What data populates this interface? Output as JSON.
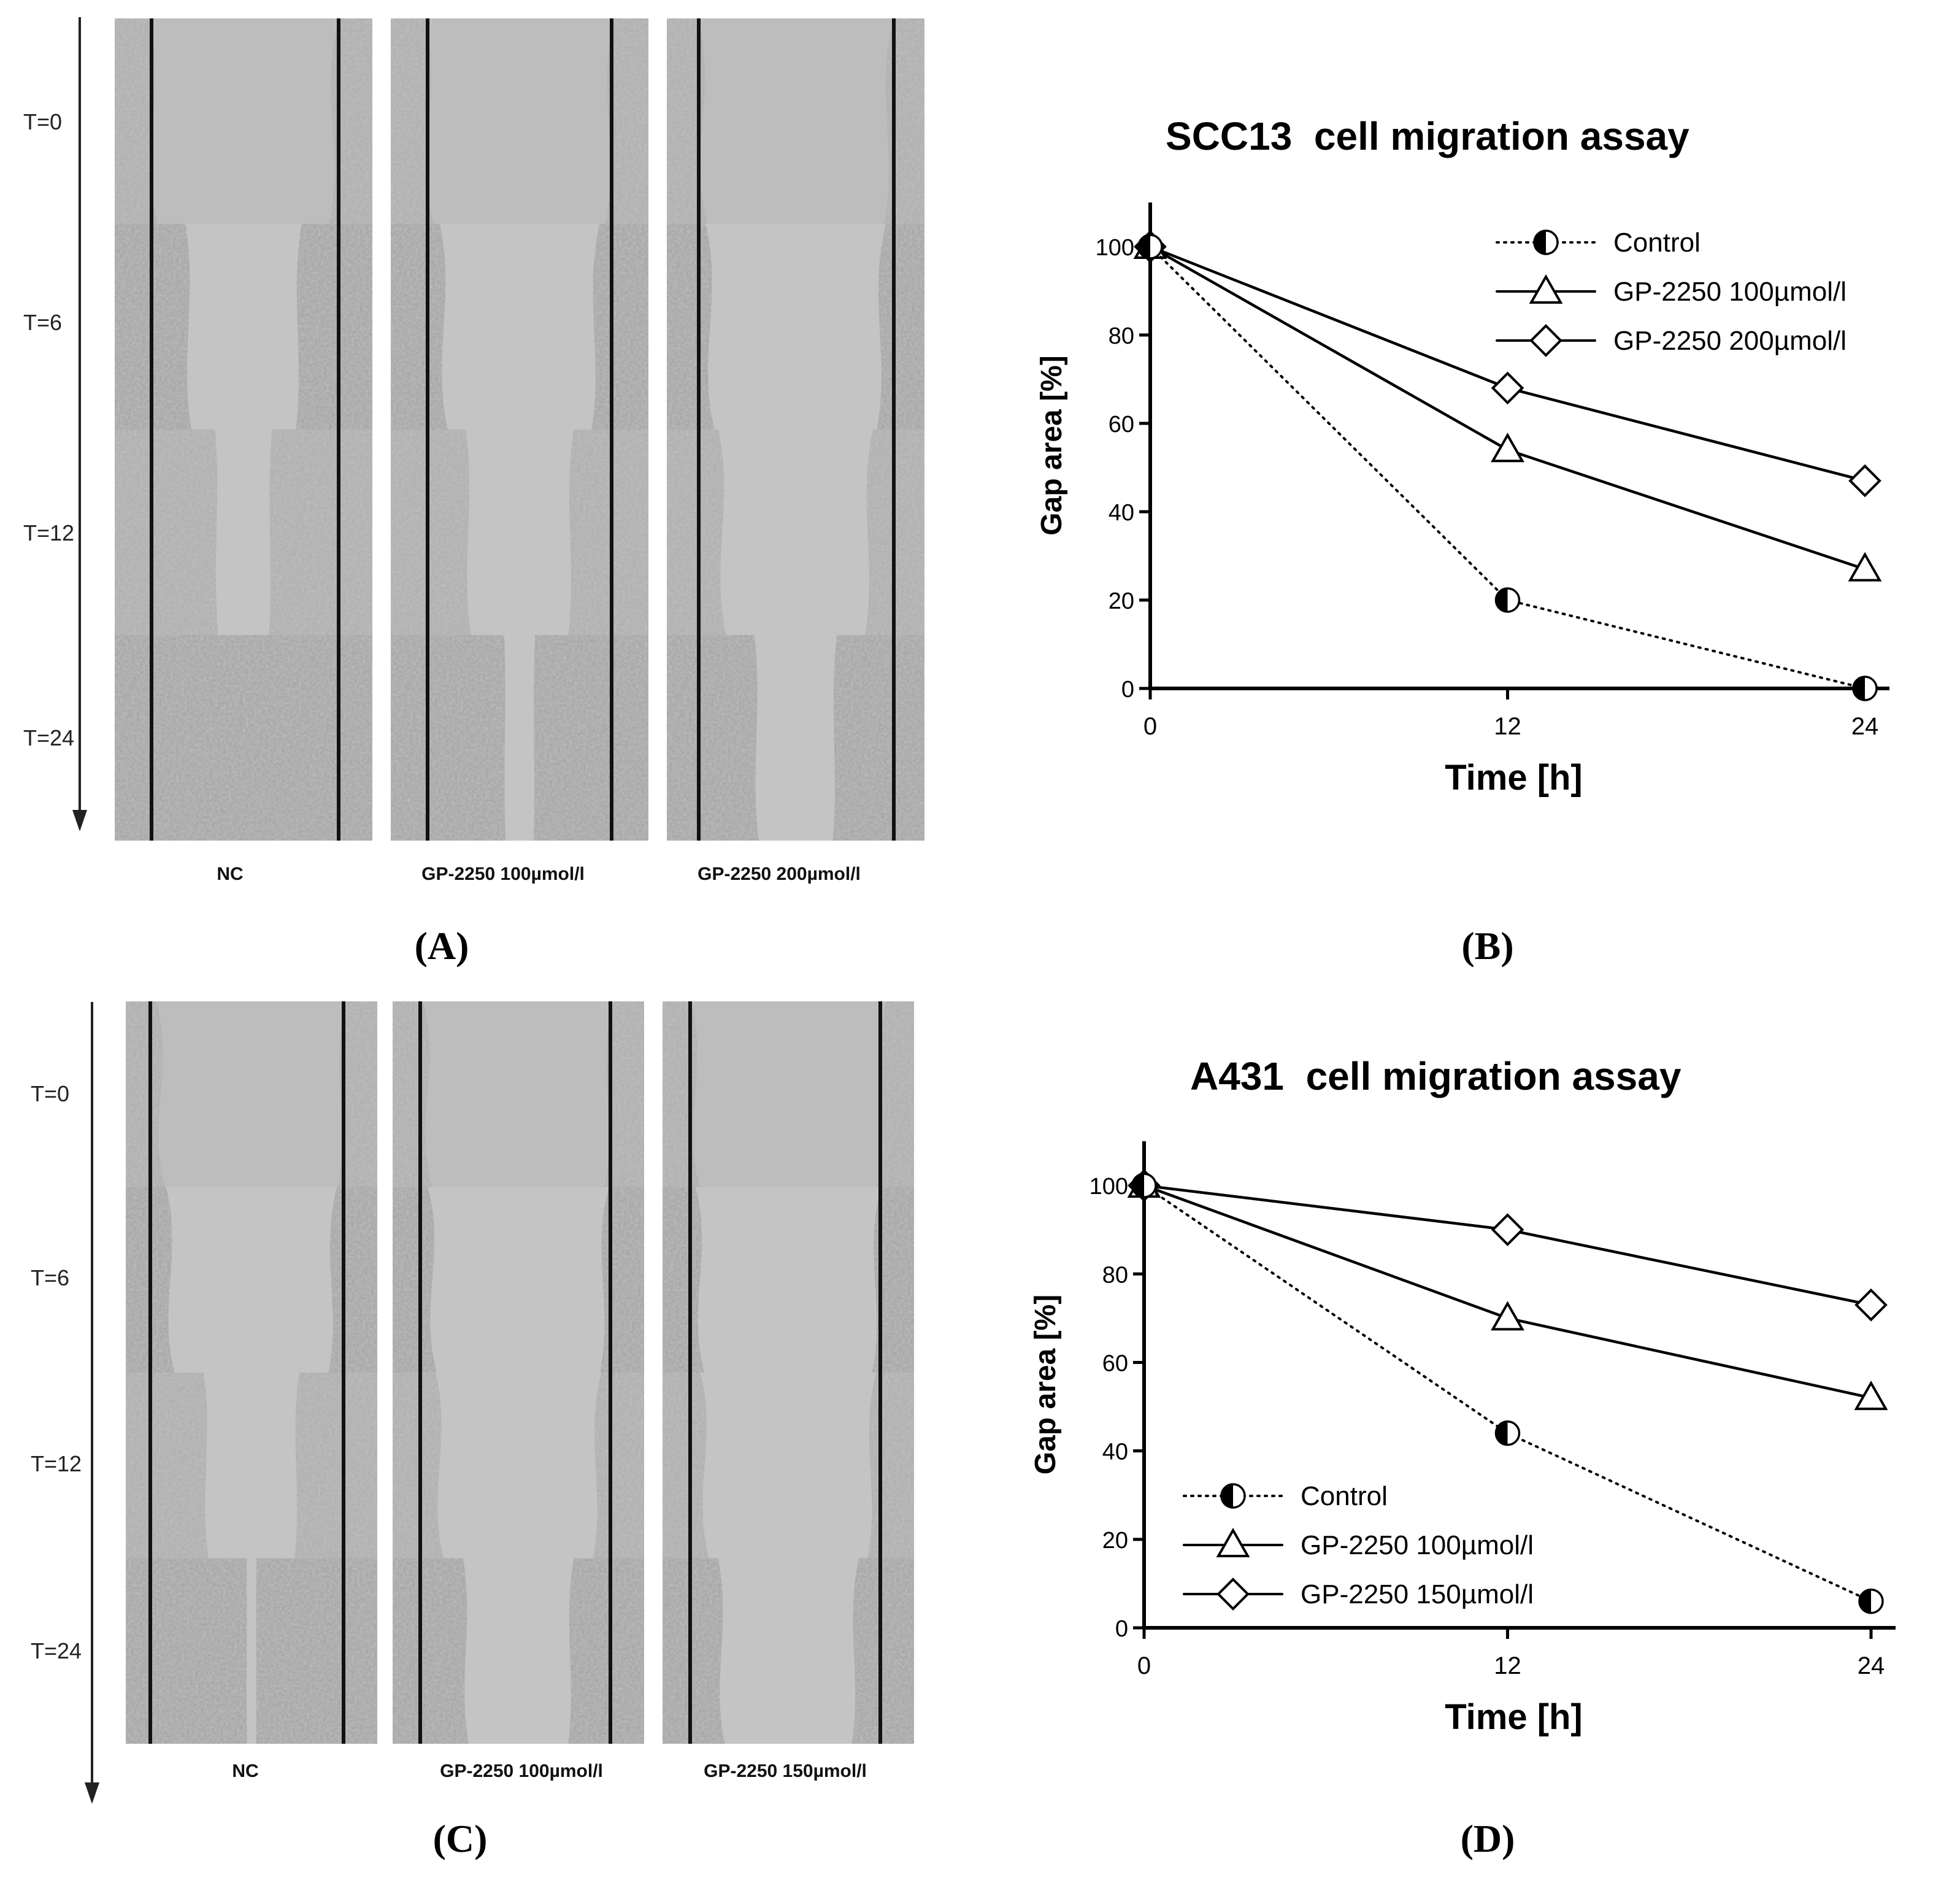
{
  "panels": {
    "A": {
      "letter": "(A)",
      "time_labels": [
        "T=0",
        "T=6",
        "T=12",
        "T=24"
      ],
      "columns": [
        "NC",
        "GP-2250 100µmol/l",
        "GP-2250 200µmol/l"
      ]
    },
    "B": {
      "letter": "(B)"
    },
    "C": {
      "letter": "(C)",
      "time_labels": [
        "T=0",
        "T=6",
        "T=12",
        "T=24"
      ],
      "columns": [
        "NC",
        "GP-2250 100µmol/l",
        "GP-2250 150µmol/l"
      ]
    },
    "D": {
      "letter": "(D)"
    }
  },
  "chart_data": [
    {
      "type": "line",
      "title": "SCC13  cell migration assay",
      "xlabel": "Time [h]",
      "ylabel": "Gap area [%]",
      "x": [
        0,
        12,
        24
      ],
      "xticks": [
        "0",
        "12",
        "24"
      ],
      "yticks": [
        "0",
        "20",
        "40",
        "60",
        "80",
        "100"
      ],
      "ylim": [
        0,
        110
      ],
      "xlim": [
        0,
        24
      ],
      "legend_position": "top-right",
      "series": [
        {
          "name": "Control",
          "marker": "half-circle",
          "style": "dotted",
          "values": [
            100,
            20,
            0
          ]
        },
        {
          "name": "GP-2250 100µmol/l",
          "marker": "triangle",
          "style": "solid",
          "values": [
            100,
            54,
            27
          ]
        },
        {
          "name": "GP-2250 200µmol/l",
          "marker": "diamond",
          "style": "solid",
          "values": [
            100,
            68,
            47
          ]
        }
      ]
    },
    {
      "type": "line",
      "title": "A431  cell migration assay",
      "xlabel": "Time [h]",
      "ylabel": "Gap area [%]",
      "x": [
        0,
        12,
        24
      ],
      "xticks": [
        "0",
        "12",
        "24"
      ],
      "yticks": [
        "0",
        "20",
        "40",
        "60",
        "80",
        "100"
      ],
      "ylim": [
        0,
        110
      ],
      "xlim": [
        0,
        24
      ],
      "legend_position": "bottom-left",
      "series": [
        {
          "name": "Control",
          "marker": "half-circle",
          "style": "dotted",
          "values": [
            100,
            44,
            6
          ]
        },
        {
          "name": "GP-2250 100µmol/l",
          "marker": "triangle",
          "style": "solid",
          "values": [
            100,
            70,
            52
          ]
        },
        {
          "name": "GP-2250 150µmol/l",
          "marker": "diamond",
          "style": "solid",
          "values": [
            100,
            90,
            73
          ]
        }
      ]
    }
  ]
}
